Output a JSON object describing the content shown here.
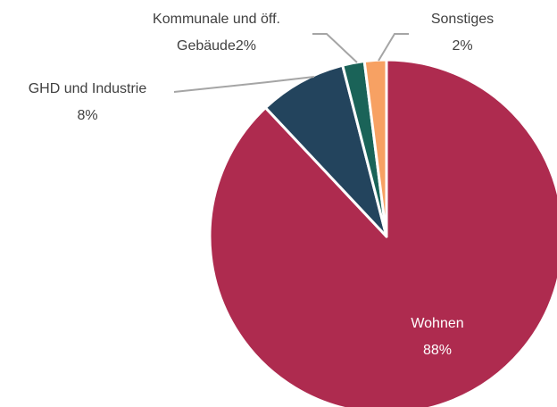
{
  "chart_data": {
    "type": "pie",
    "categories": [
      "Wohnen",
      "GHD und Industrie",
      "Kommunale und öff. Gebäude",
      "Sonstiges"
    ],
    "values": [
      88,
      8,
      2,
      2
    ],
    "value_labels": [
      "88%",
      "8%",
      "2%",
      "2%"
    ],
    "colors": [
      "#ae2b4f",
      "#23445d",
      "#1a6358",
      "#f7a163"
    ]
  }
}
